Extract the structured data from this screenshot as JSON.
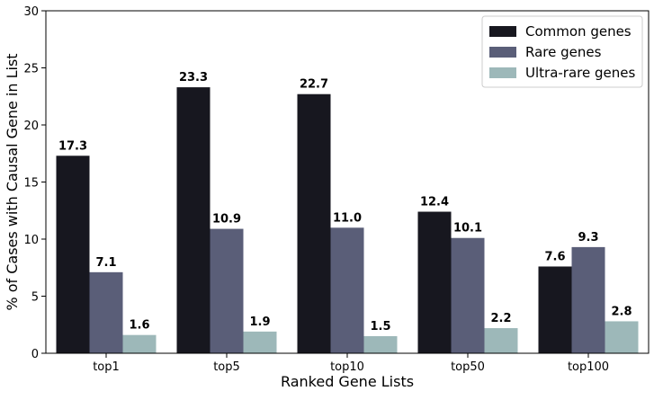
{
  "chart_data": {
    "type": "bar",
    "title": "",
    "xlabel": "Ranked Gene Lists",
    "ylabel": "% of Cases with Causal Gene in List",
    "categories": [
      "top1",
      "top5",
      "top10",
      "top50",
      "top100"
    ],
    "ylim": [
      0,
      30
    ],
    "yticks": [
      0,
      5,
      10,
      15,
      20,
      25,
      30
    ],
    "grid": false,
    "legend_position": "top-right",
    "series": [
      {
        "name": "Common genes",
        "color": "#17171f",
        "values": [
          17.3,
          23.3,
          22.7,
          12.4,
          7.6
        ]
      },
      {
        "name": "Rare genes",
        "color": "#5a5e78",
        "values": [
          7.1,
          10.9,
          11.0,
          10.1,
          9.3
        ]
      },
      {
        "name": "Ultra-rare genes",
        "color": "#9db8b9",
        "values": [
          1.6,
          1.9,
          1.5,
          2.2,
          2.8
        ]
      }
    ]
  }
}
